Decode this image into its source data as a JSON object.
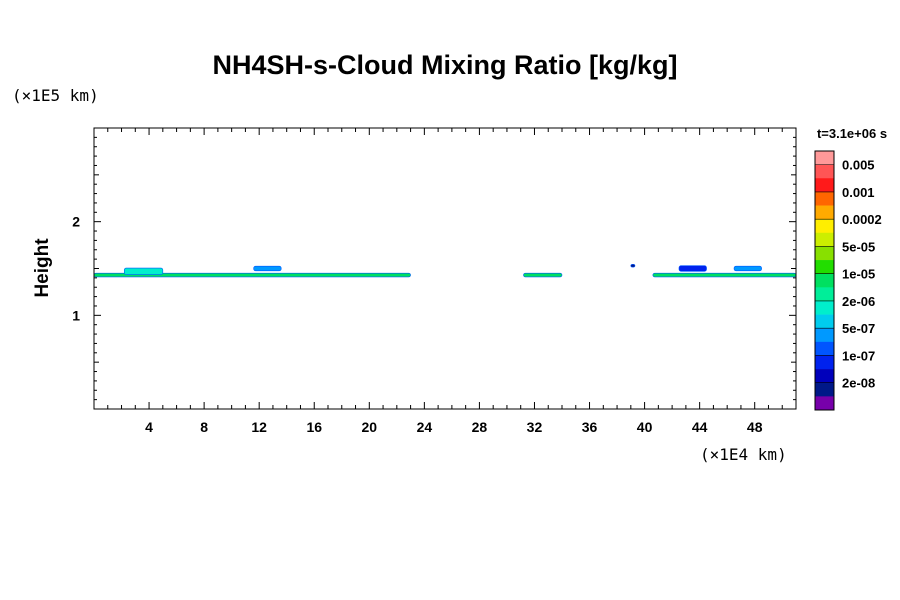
{
  "chart_data": {
    "type": "heatmap",
    "title": "NH4SH-s-Cloud Mixing Ratio [kg/kg]",
    "ylabel": "Height",
    "y_unit": "(×1E5 km)",
    "x_unit": "(×1E4 km)",
    "time_label": "t=3.1e+06 s",
    "xlim": [
      0,
      51
    ],
    "ylim": [
      0,
      3
    ],
    "x_ticks": [
      "4",
      "8",
      "12",
      "16",
      "20",
      "24",
      "28",
      "32",
      "36",
      "40",
      "44",
      "48"
    ],
    "y_ticks": [
      "1",
      "2"
    ],
    "colorbar": {
      "labels": [
        "0.005",
        "0.001",
        "0.0002",
        "5e-05",
        "1e-05",
        "2e-06",
        "5e-07",
        "1e-07",
        "2e-08"
      ],
      "colors": [
        "#ff9999",
        "#ff5555",
        "#ff1a1a",
        "#ff6600",
        "#ffaa00",
        "#ffee00",
        "#ccee00",
        "#88e000",
        "#22dd00",
        "#00e060",
        "#00ee99",
        "#00eecc",
        "#00ccee",
        "#0099ff",
        "#0055ff",
        "#0022ee",
        "#0000bb",
        "#001888",
        "#7700aa"
      ]
    },
    "cloud_features": [
      {
        "x": [
          0,
          23
        ],
        "y": 1.43,
        "thickness": 0.04,
        "level": "1e-05"
      },
      {
        "x": [
          31.2,
          34
        ],
        "y": 1.43,
        "thickness": 0.04,
        "level": "1e-05"
      },
      {
        "x": [
          40.6,
          51
        ],
        "y": 1.43,
        "thickness": 0.04,
        "level": "1e-05"
      },
      {
        "x": [
          2.2,
          5
        ],
        "y": 1.47,
        "thickness": 0.07,
        "level": "2e-06"
      },
      {
        "x": [
          11.6,
          13.6
        ],
        "y": 1.5,
        "thickness": 0.05,
        "level": "5e-07"
      },
      {
        "x": [
          42.5,
          44.5
        ],
        "y": 1.5,
        "thickness": 0.06,
        "level": "1e-07"
      },
      {
        "x": [
          46.5,
          48.5
        ],
        "y": 1.5,
        "thickness": 0.05,
        "level": "5e-07"
      },
      {
        "x": [
          39,
          39.3
        ],
        "y": 1.53,
        "thickness": 0.03,
        "level": "2e-08"
      }
    ]
  }
}
